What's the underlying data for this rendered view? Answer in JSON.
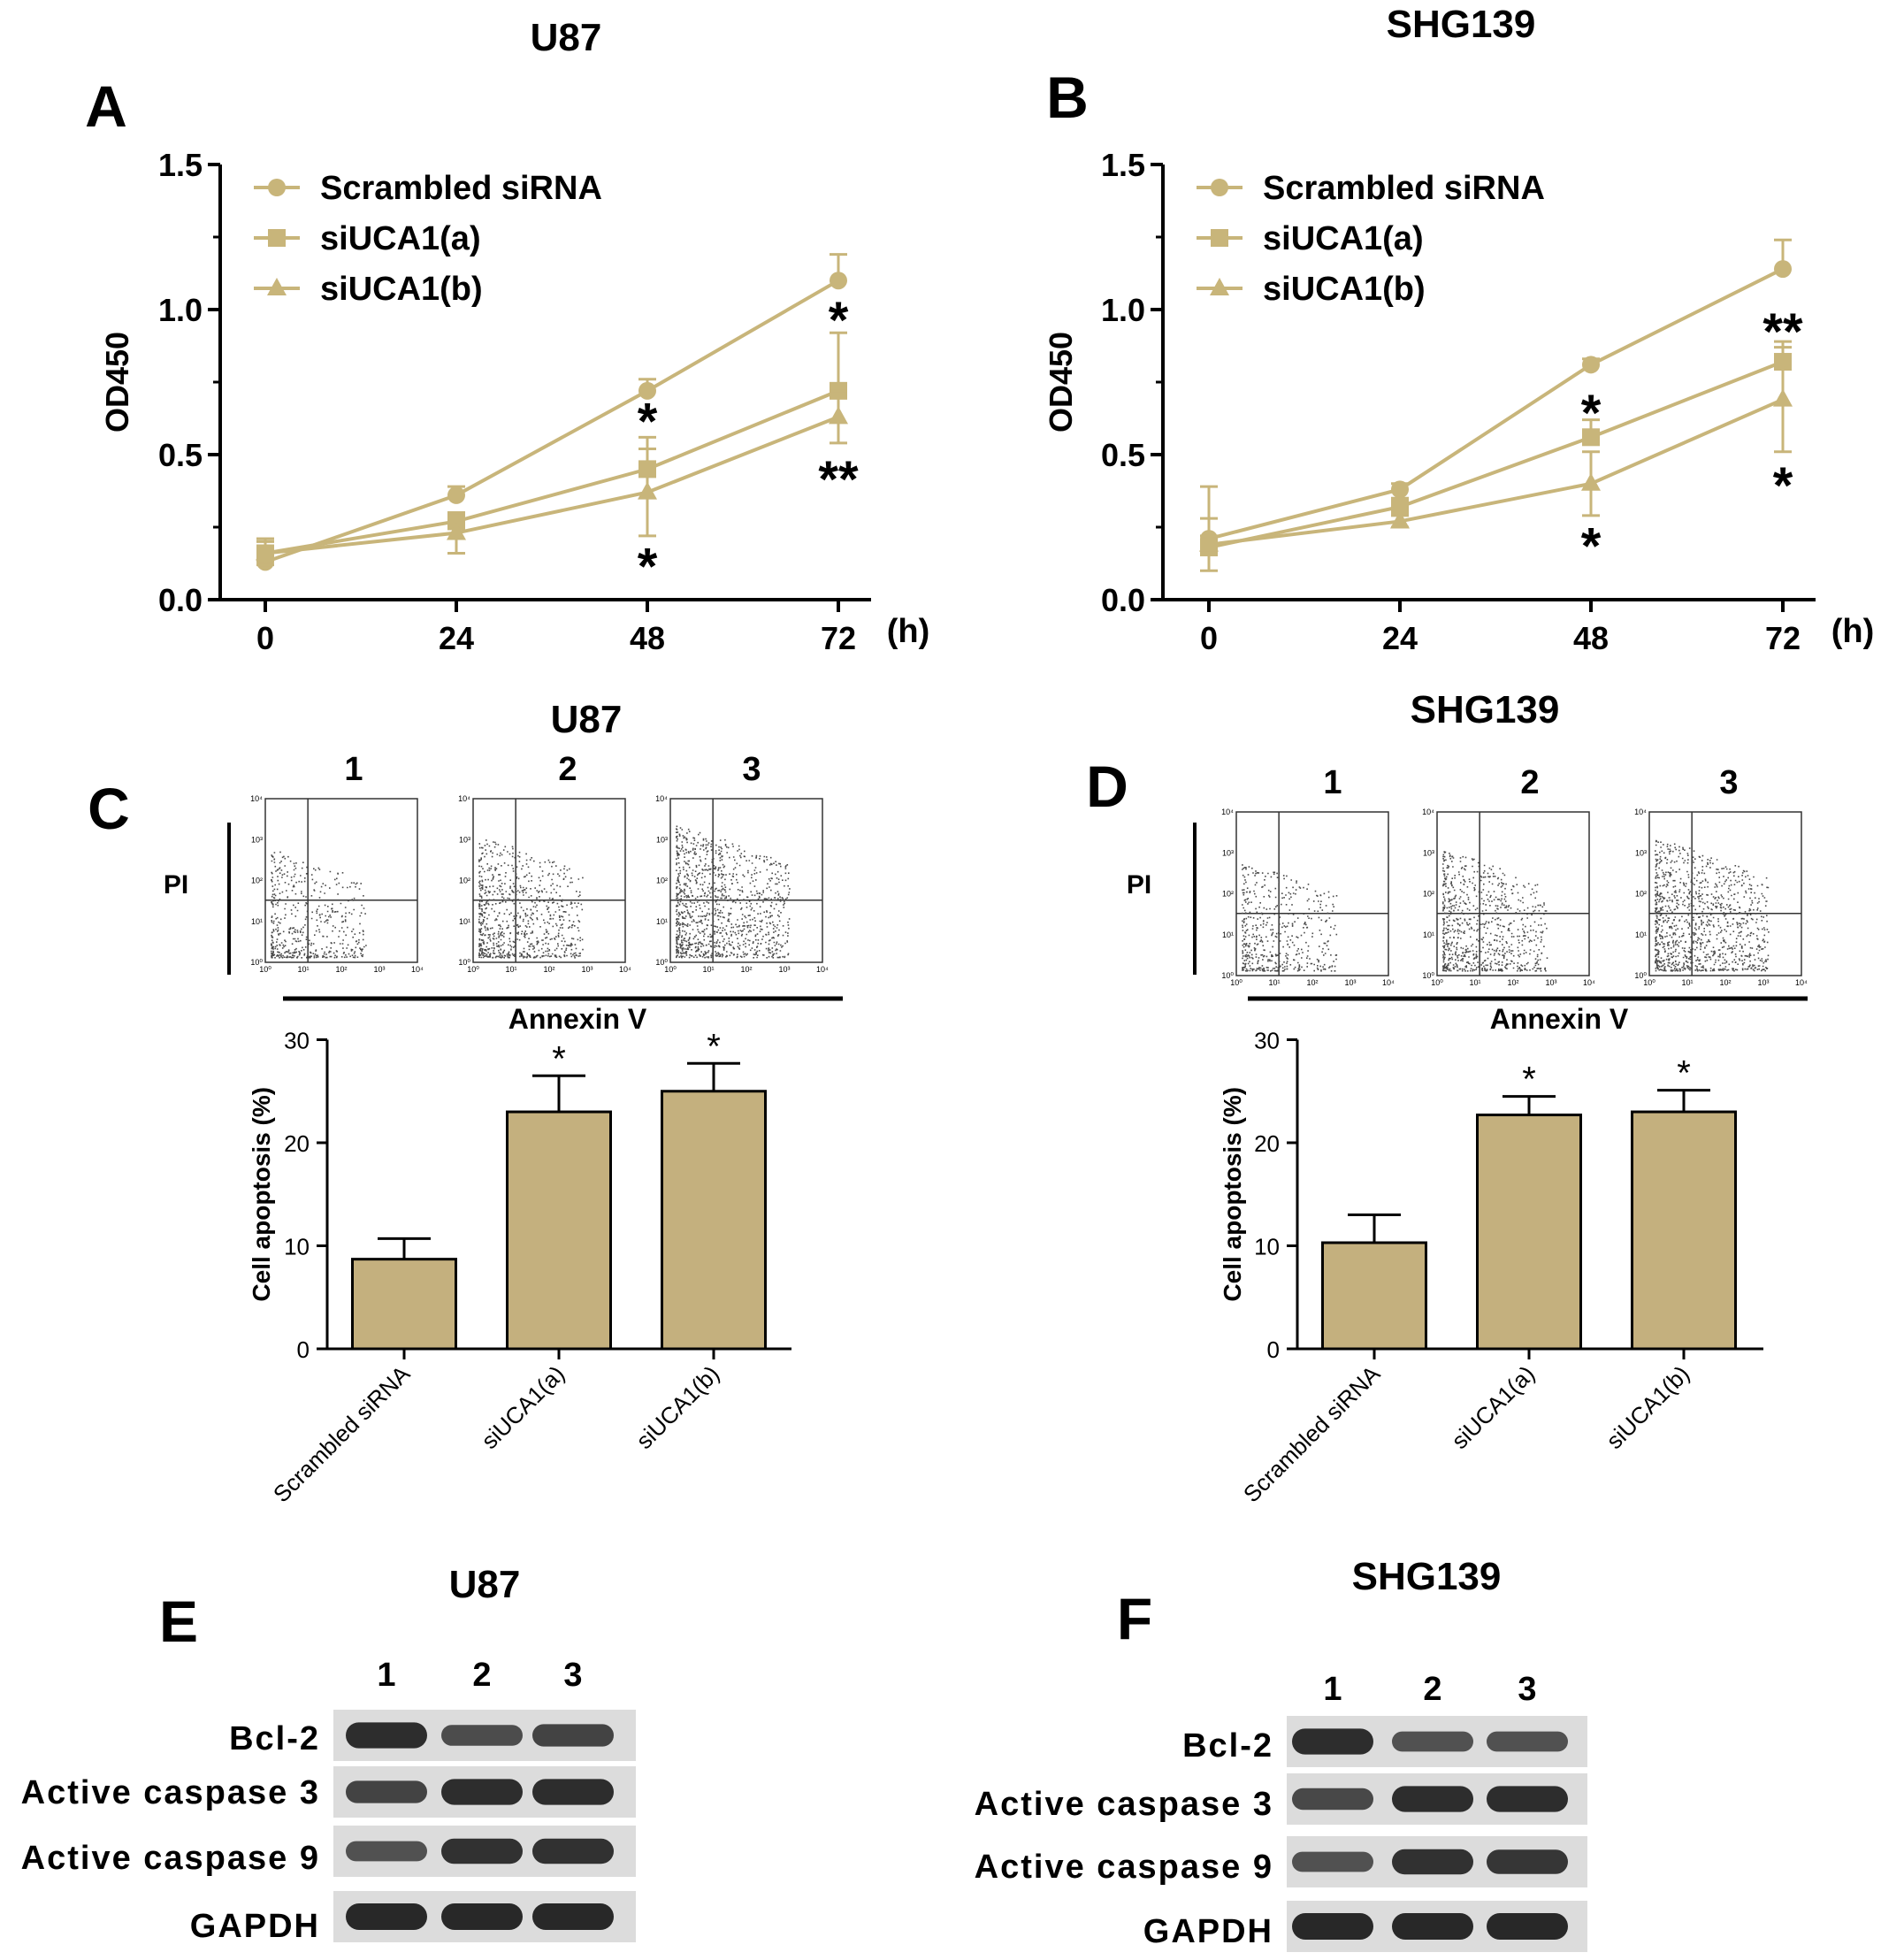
{
  "colors": {
    "series": "#c8b57a",
    "bar_fill": "#c4b07e",
    "axis": "#000000",
    "dot": "#4a4a4a"
  },
  "panels_line": [
    {
      "letter": "A",
      "title": "U87",
      "ylabel": "OD450",
      "xunit": "(h)",
      "y_ticks": [
        "0.0",
        "0.5",
        "1.0",
        "1.5"
      ],
      "x_ticks": [
        "0",
        "24",
        "48",
        "72"
      ],
      "legend": [
        "Scrambled siRNA",
        "siUCA1(a)",
        "siUCA1(b)"
      ],
      "stars": [
        {
          "x": 48,
          "y": 0.62,
          "text": "*"
        },
        {
          "x": 48,
          "y": 0.12,
          "text": "*"
        },
        {
          "x": 72,
          "y": 0.97,
          "text": "*"
        },
        {
          "x": 72,
          "y": 0.42,
          "text": "**"
        }
      ]
    },
    {
      "letter": "B",
      "title": "SHG139",
      "ylabel": "OD450",
      "xunit": "(h)",
      "y_ticks": [
        "0.0",
        "0.5",
        "1.0",
        "1.5"
      ],
      "x_ticks": [
        "0",
        "24",
        "48",
        "72"
      ],
      "legend": [
        "Scrambled siRNA",
        "siUCA1(a)",
        "siUCA1(b)"
      ],
      "stars": [
        {
          "x": 48,
          "y": 0.65,
          "text": "*"
        },
        {
          "x": 48,
          "y": 0.19,
          "text": "*"
        },
        {
          "x": 72,
          "y": 0.93,
          "text": "**"
        },
        {
          "x": 72,
          "y": 0.4,
          "text": "*"
        }
      ]
    }
  ],
  "panels_bar": [
    {
      "letter": "C",
      "title": "U87",
      "lanes": [
        "1",
        "2",
        "3"
      ],
      "pi_label": "PI",
      "annexin_label": "Annexin V",
      "flow_tick_y": [
        "10⁰",
        "10¹",
        "10²",
        "10³",
        "10⁴"
      ],
      "flow_tick_x": [
        "10⁰",
        "10¹",
        "10²",
        "10³",
        "10⁴"
      ],
      "ylabel": "Cell apoptosis (%)",
      "y_ticks": [
        "0",
        "10",
        "20",
        "30"
      ],
      "categories": [
        "Scrambled siRNA",
        "siUCA1(a)",
        "siUCA1(b)"
      ],
      "sig": [
        "",
        "*",
        "*"
      ]
    },
    {
      "letter": "D",
      "title": "SHG139",
      "lanes": [
        "1",
        "2",
        "3"
      ],
      "pi_label": "PI",
      "annexin_label": "Annexin V",
      "flow_tick_y": [
        "10⁰",
        "10¹",
        "10²",
        "10³",
        "10⁴"
      ],
      "flow_tick_x": [
        "10⁰",
        "10¹",
        "10²",
        "10³",
        "10⁴"
      ],
      "ylabel": "Cell apoptosis (%)",
      "y_ticks": [
        "0",
        "10",
        "20",
        "30"
      ],
      "categories": [
        "Scrambled siRNA",
        "siUCA1(a)",
        "siUCA1(b)"
      ],
      "sig": [
        "",
        "*",
        "*"
      ]
    }
  ],
  "panels_blot": [
    {
      "letter": "E",
      "title": "U87",
      "lanes": [
        "1",
        "2",
        "3"
      ],
      "proteins": [
        "Bcl-2",
        "Active caspase 3",
        "Active caspase 9",
        "GAPDH"
      ],
      "intensity": [
        [
          0.95,
          0.6,
          0.7
        ],
        [
          0.7,
          0.95,
          0.95
        ],
        [
          0.55,
          0.9,
          0.9
        ],
        [
          1.0,
          1.0,
          1.0
        ]
      ]
    },
    {
      "letter": "F",
      "title": "SHG139",
      "lanes": [
        "1",
        "2",
        "3"
      ],
      "proteins": [
        "Bcl-2",
        "Active caspase 3",
        "Active caspase 9",
        "GAPDH"
      ],
      "intensity": [
        [
          0.95,
          0.55,
          0.55
        ],
        [
          0.65,
          0.95,
          0.95
        ],
        [
          0.55,
          0.9,
          0.85
        ],
        [
          1.0,
          1.0,
          1.0
        ]
      ]
    }
  ],
  "chart_data": [
    {
      "type": "line",
      "title": "U87",
      "ylabel": "OD450",
      "xlabel": "(h)",
      "x": [
        0,
        24,
        48,
        72
      ],
      "ylim": [
        0,
        1.5
      ],
      "legend_position": "top-left",
      "series": [
        {
          "name": "Scrambled siRNA",
          "marker": "circle",
          "values": [
            0.13,
            0.36,
            0.72,
            1.1
          ],
          "err": [
            0.08,
            0.03,
            0.04,
            0.09
          ]
        },
        {
          "name": "siUCA1(a)",
          "marker": "square",
          "values": [
            0.16,
            0.27,
            0.45,
            0.72
          ],
          "err": [
            0.05,
            0.03,
            0.11,
            0.2
          ]
        },
        {
          "name": "siUCA1(b)",
          "marker": "triangle",
          "values": [
            0.16,
            0.23,
            0.37,
            0.63
          ],
          "err": [
            0.04,
            0.07,
            0.15,
            0.09
          ]
        }
      ]
    },
    {
      "type": "line",
      "title": "SHG139",
      "ylabel": "OD450",
      "xlabel": "(h)",
      "x": [
        0,
        24,
        48,
        72
      ],
      "ylim": [
        0,
        1.5
      ],
      "legend_position": "top-left",
      "series": [
        {
          "name": "Scrambled siRNA",
          "marker": "circle",
          "values": [
            0.21,
            0.38,
            0.81,
            1.14
          ],
          "err": [
            0.18,
            0.02,
            0.02,
            0.1
          ]
        },
        {
          "name": "siUCA1(a)",
          "marker": "square",
          "values": [
            0.18,
            0.32,
            0.56,
            0.82
          ],
          "err": [
            0.04,
            0.03,
            0.06,
            0.07
          ]
        },
        {
          "name": "siUCA1(b)",
          "marker": "triangle",
          "values": [
            0.19,
            0.27,
            0.4,
            0.69
          ],
          "err": [
            0.09,
            0.02,
            0.11,
            0.18
          ]
        }
      ]
    },
    {
      "type": "bar",
      "title": "U87",
      "ylabel": "Cell apoptosis (%)",
      "ylim": [
        0,
        30
      ],
      "categories": [
        "Scrambled siRNA",
        "siUCA1(a)",
        "siUCA1(b)"
      ],
      "values": [
        8.7,
        23.0,
        25.0
      ],
      "err": [
        2.0,
        3.5,
        2.7
      ]
    },
    {
      "type": "bar",
      "title": "SHG139",
      "ylabel": "Cell apoptosis (%)",
      "ylim": [
        0,
        30
      ],
      "categories": [
        "Scrambled siRNA",
        "siUCA1(a)",
        "siUCA1(b)"
      ],
      "values": [
        10.3,
        22.7,
        23.0
      ],
      "err": [
        2.7,
        1.8,
        2.1
      ]
    }
  ]
}
